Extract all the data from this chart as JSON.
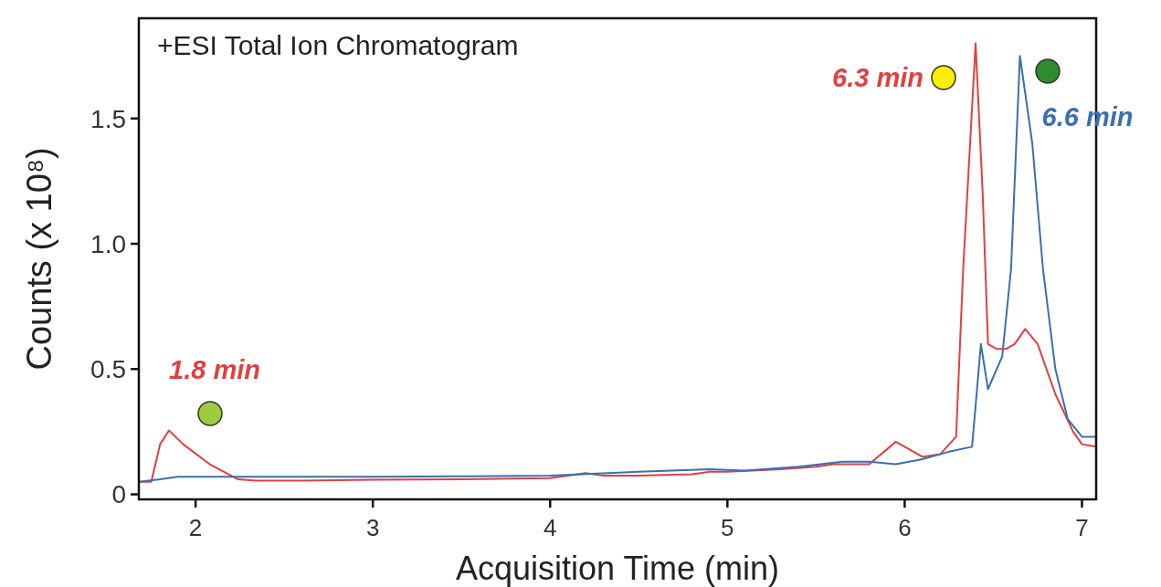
{
  "chart_data": {
    "type": "line",
    "title": "+ESI Total Ion Chromatogram",
    "xlabel": "Acquisition Time (min)",
    "ylabel": "Counts (x 10⁸)",
    "xlim": [
      1.68,
      7.08
    ],
    "xticks": [
      2,
      3,
      4,
      5,
      6,
      7
    ],
    "ylim": [
      -0.02,
      1.9
    ],
    "yticks": [
      0,
      0.5,
      {
        "value": 1,
        "label": "1.0"
      },
      1.5
    ],
    "grid": false,
    "marker": "none",
    "line_style": "solid",
    "annotations": [
      {
        "text": "1.8 min",
        "x": 1.85,
        "y": 0.255
      },
      {
        "text": "6.3 min",
        "x": 6.4,
        "y": 1.8
      },
      {
        "text": "6.6 min",
        "x": 6.65,
        "y": 1.75
      }
    ],
    "series": [
      {
        "color": "#e04040",
        "x": [
          1.68,
          1.75,
          1.8,
          1.85,
          1.93,
          2.08,
          2.24,
          2.34,
          2.6,
          3.0,
          3.5,
          4.0,
          4.1,
          4.2,
          4.3,
          4.5,
          4.8,
          4.9,
          5.0,
          5.3,
          5.5,
          5.6,
          5.8,
          5.95,
          6.1,
          6.2,
          6.29,
          6.33,
          6.4,
          6.44,
          6.47,
          6.52,
          6.57,
          6.62,
          6.68,
          6.75,
          6.85,
          6.95,
          7.0,
          7.08
        ],
        "values": [
          0.05,
          0.05,
          0.2,
          0.255,
          0.2,
          0.12,
          0.06,
          0.055,
          0.055,
          0.058,
          0.06,
          0.065,
          0.075,
          0.085,
          0.075,
          0.075,
          0.08,
          0.09,
          0.09,
          0.1,
          0.11,
          0.12,
          0.12,
          0.21,
          0.15,
          0.16,
          0.23,
          0.9,
          1.8,
          1.2,
          0.6,
          0.58,
          0.58,
          0.6,
          0.66,
          0.6,
          0.4,
          0.25,
          0.2,
          0.19
        ]
      },
      {
        "color": "#3a6fb0",
        "x": [
          1.68,
          1.8,
          1.9,
          2.2,
          3.0,
          3.5,
          4.0,
          4.5,
          4.9,
          5.1,
          5.4,
          5.65,
          5.8,
          5.95,
          6.1,
          6.25,
          6.38,
          6.43,
          6.47,
          6.55,
          6.6,
          6.65,
          6.72,
          6.78,
          6.85,
          6.92,
          7.0,
          7.08
        ],
        "values": [
          0.05,
          0.06,
          0.07,
          0.07,
          0.07,
          0.072,
          0.075,
          0.09,
          0.1,
          0.095,
          0.11,
          0.13,
          0.13,
          0.12,
          0.14,
          0.17,
          0.19,
          0.6,
          0.42,
          0.55,
          0.9,
          1.75,
          1.4,
          0.9,
          0.5,
          0.3,
          0.23,
          0.23
        ]
      }
    ]
  }
}
